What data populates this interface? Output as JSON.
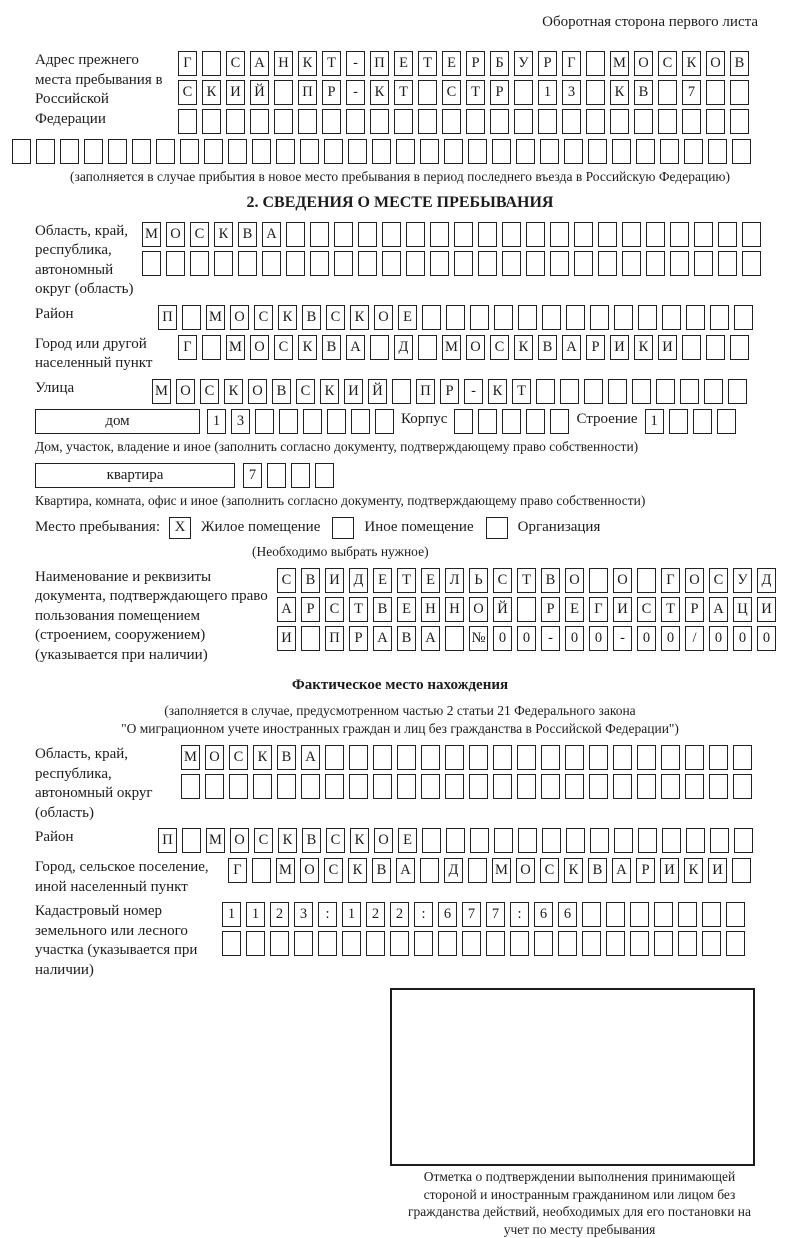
{
  "header": {
    "note": "Оборотная сторона первого листа"
  },
  "prev_address": {
    "label": "Адрес прежнего места пребывания в Российской Федерации",
    "row1": {
      "len": 24,
      "text": "Г САНКТ-ПЕТЕРБУРГ МОСКОВ"
    },
    "row2": {
      "len": 24,
      "text": "СКИЙ ПР-КТ СТР 13 КВ 7"
    },
    "row3": {
      "len": 24,
      "text": ""
    },
    "row4": {
      "len": 31,
      "text": ""
    },
    "caption": "(заполняется в случае прибытия в новое место пребывания в период последнего въезда в Российскую Федерацию)"
  },
  "section2": {
    "title": "2. СВЕДЕНИЯ О МЕСТЕ ПРЕБЫВАНИЯ",
    "oblast": {
      "label": "Область, край, республика, автономный округ (область)",
      "row1": {
        "len": 26,
        "text": "МОСКВА"
      },
      "row2": {
        "len": 26,
        "text": ""
      }
    },
    "rayon": {
      "label": "Район",
      "row": {
        "len": 25,
        "text": "П МОСКВСКОЕ"
      }
    },
    "gorod": {
      "label": "Город или другой населенный пункт",
      "row": {
        "len": 24,
        "text": "Г МОСКВА Д МОСКВАРИКИ"
      }
    },
    "ulitsa": {
      "label": "Улица",
      "row": {
        "len": 25,
        "text": "МОСКОВСКИЙ ПР-КТ"
      }
    },
    "dom": {
      "box_label": "дом",
      "row1": {
        "len": 8,
        "text": "13"
      },
      "korpus_label": "Корпус",
      "row2": {
        "len": 5,
        "text": ""
      },
      "stroenie_label": "Строение",
      "row3": {
        "len": 4,
        "text": "1"
      },
      "caption": "Дом, участок, владение и иное (заполнить согласно документу, подтверждающему право собственности)"
    },
    "kvartira": {
      "box_label": "квартира",
      "row": {
        "len": 4,
        "text": "7"
      },
      "caption": "Квартира, комната, офис и иное (заполнить согласно документу, подтверждающему право собственности)"
    },
    "mesto": {
      "label": "Место пребывания:",
      "options": [
        {
          "label": "Жилое помещение",
          "mark": "X"
        },
        {
          "label": "Иное помещение",
          "mark": ""
        },
        {
          "label": "Организация",
          "mark": ""
        }
      ],
      "note": "(Необходимо выбрать нужное)"
    },
    "doc": {
      "label": "Наименование и реквизиты документа, подтверждающего право пользования помещением (строением, сооружением) (указывается при наличии)",
      "row1": {
        "len": 21,
        "text": "СВИДЕТЕЛЬСТВО О ГОСУД"
      },
      "row2": {
        "len": 21,
        "text": "АРСТВЕННОЙ РЕГИСТРАЦИ"
      },
      "row3": {
        "len": 21,
        "text": "И ПРАВА №00-00-00/000"
      }
    }
  },
  "section3": {
    "title": "Фактическое место нахождения",
    "caption1": "(заполняется в случае, предусмотренном частью 2 статьи 21 Федерального закона",
    "caption2": "\"О миграционном учете иностранных граждан и лиц без гражданства в Российской Федерации\")",
    "oblast": {
      "label": "Область, край, республика, автономный округ (область)",
      "row1": {
        "len": 24,
        "text": "МОСКВА"
      },
      "row2": {
        "len": 24,
        "text": ""
      }
    },
    "rayon": {
      "label": "Район",
      "row": {
        "len": 25,
        "text": "П МОСКВСКОЕ"
      }
    },
    "gorod": {
      "label": "Город, сельское поселение, иной населенный пункт",
      "row": {
        "len": 22,
        "text": "Г МОСКВА Д МОСКВАРИКИ"
      }
    },
    "kadastr": {
      "label": "Кадастровый номер земельного или лесного участка (указывается при наличии)",
      "row1": {
        "len": 22,
        "text": "1123:122:677:66"
      },
      "row2": {
        "len": 22,
        "text": ""
      }
    },
    "stamp_caption": "Отметка о подтверждении выполнения принимающей стороной и иностранным гражданином или лицом без гражданства действий, необходимых для его постановки на учет по месту пребывания"
  }
}
